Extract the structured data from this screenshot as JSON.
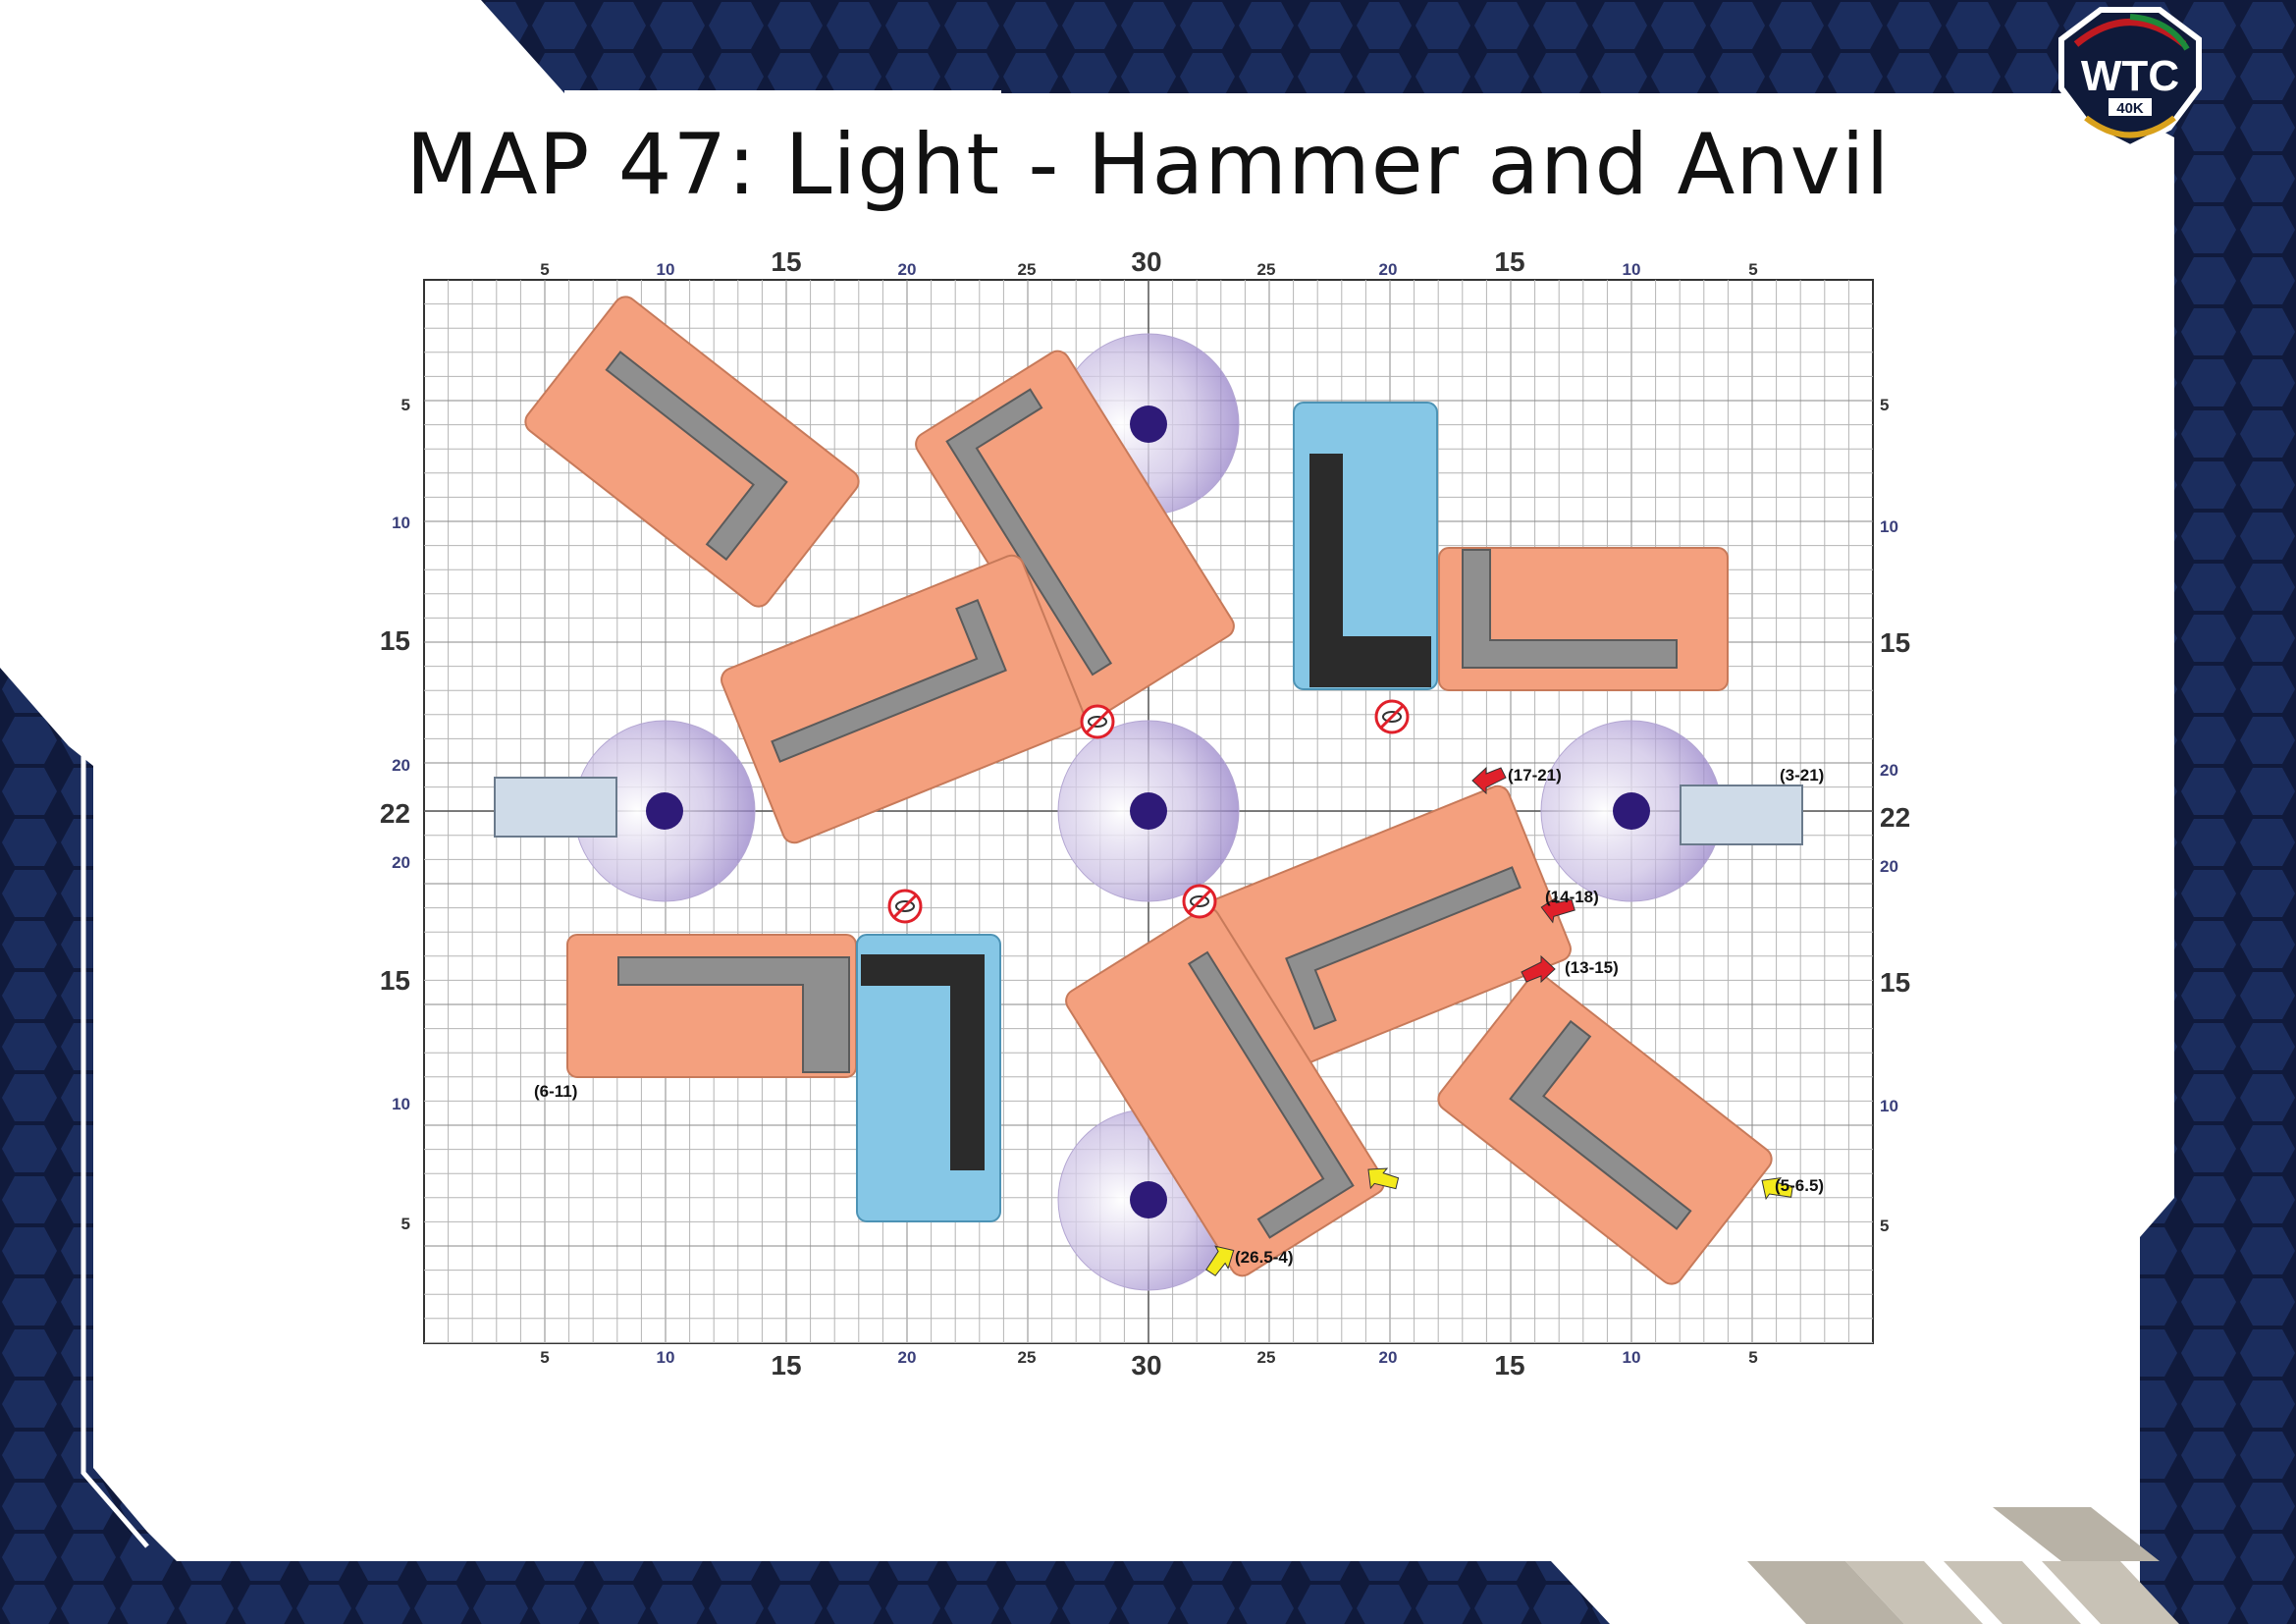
{
  "title": "MAP 47: Light - Hammer and Anvil",
  "logo": {
    "text": "WTC",
    "subtext": "40K"
  },
  "axis": {
    "top_ticks": [
      "5",
      "10",
      "15",
      "20",
      "25",
      "30",
      "25",
      "20",
      "15",
      "10",
      "5"
    ],
    "bottom_ticks": [
      "5",
      "10",
      "15",
      "20",
      "25",
      "30",
      "25",
      "20",
      "15",
      "10",
      "5"
    ],
    "left_ticks": [
      "5",
      "10",
      "15",
      "20",
      "22",
      "20",
      "15",
      "10",
      "5"
    ],
    "right_ticks": [
      "5",
      "10",
      "15",
      "20",
      "22",
      "20",
      "15",
      "10",
      "5"
    ]
  },
  "annotations": {
    "a_17_21": "(17-21)",
    "a_3_21": "(3-21)",
    "a_14_18": "(14-18)",
    "a_13_15": "(13-15)",
    "a_6_11": "(6-11)",
    "a_5_65": "(5-6.5)",
    "a_265_4": "(26.5-4)"
  },
  "colors": {
    "ruin_orange": "#f4a07e",
    "ruin_wall": "#8f8f8f",
    "forest_blue": "#86c7e6",
    "forest_rock": "#2b2b2b",
    "objective": "#2e1a78",
    "container": "#cfdbe8",
    "red_arrow": "#e0202a",
    "yellow_arrow": "#f4ea1c",
    "frame_dark": "#101a3c",
    "hex": "#1d3266"
  }
}
